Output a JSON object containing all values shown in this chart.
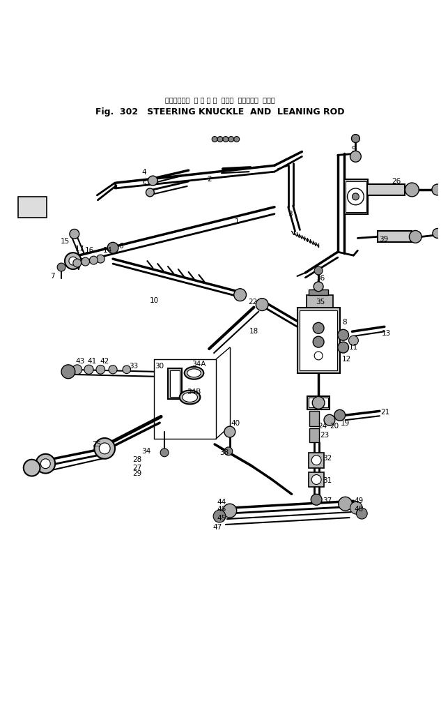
{
  "title_japanese": "ステアリング  ナ ッ ク ル  および  リーニング  ロッド",
  "title_english": "Fig.  302   STEERING KNUCKLE  AND  LEANING ROD",
  "bg_color": "#ffffff",
  "ink_color": "#000000",
  "fig_width": 6.33,
  "fig_height": 10.15,
  "dpi": 100
}
